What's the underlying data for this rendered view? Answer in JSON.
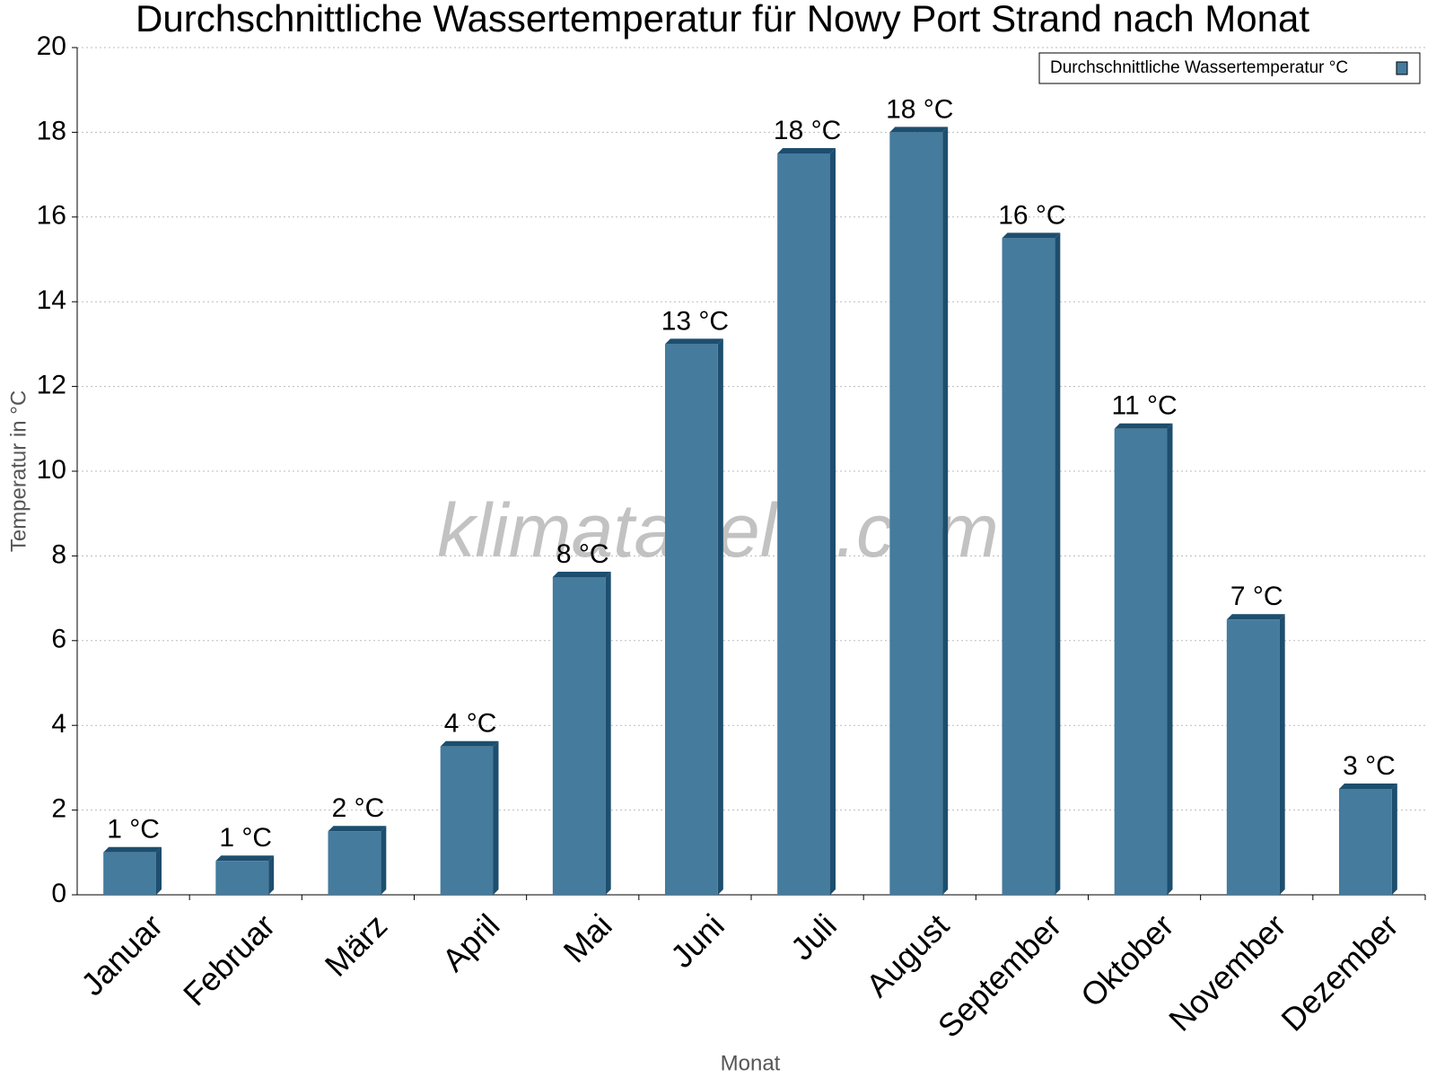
{
  "chart_data": {
    "type": "bar",
    "title": "Durchschnittliche Wassertemperatur für Nowy Port Strand nach Monat",
    "watermark": "klimatabelle.com",
    "x_label": "Monat",
    "y_label": "Temperatur in °C",
    "categories": [
      "Januar",
      "Februar",
      "März",
      "April",
      "Mai",
      "Juni",
      "Juli",
      "August",
      "September",
      "Oktober",
      "November",
      "Dezember"
    ],
    "series": [
      {
        "name": "Durchschnittliche Wassertemperatur °C",
        "color": "#457b9d",
        "values": [
          1.0,
          0.8,
          1.5,
          3.5,
          7.5,
          13.0,
          17.5,
          18.0,
          15.5,
          11.0,
          6.5,
          2.5
        ],
        "value_labels": [
          "1 °C",
          "1 °C",
          "2 °C",
          "4 °C",
          "8 °C",
          "13 °C",
          "18 °C",
          "18 °C",
          "16 °C",
          "11 °C",
          "7 °C",
          "3 °C"
        ]
      }
    ],
    "ylim": [
      0,
      20
    ],
    "yticks": [
      0,
      2,
      4,
      6,
      8,
      10,
      12,
      14,
      16,
      18,
      20
    ],
    "grid": true,
    "legend": "top-right"
  }
}
